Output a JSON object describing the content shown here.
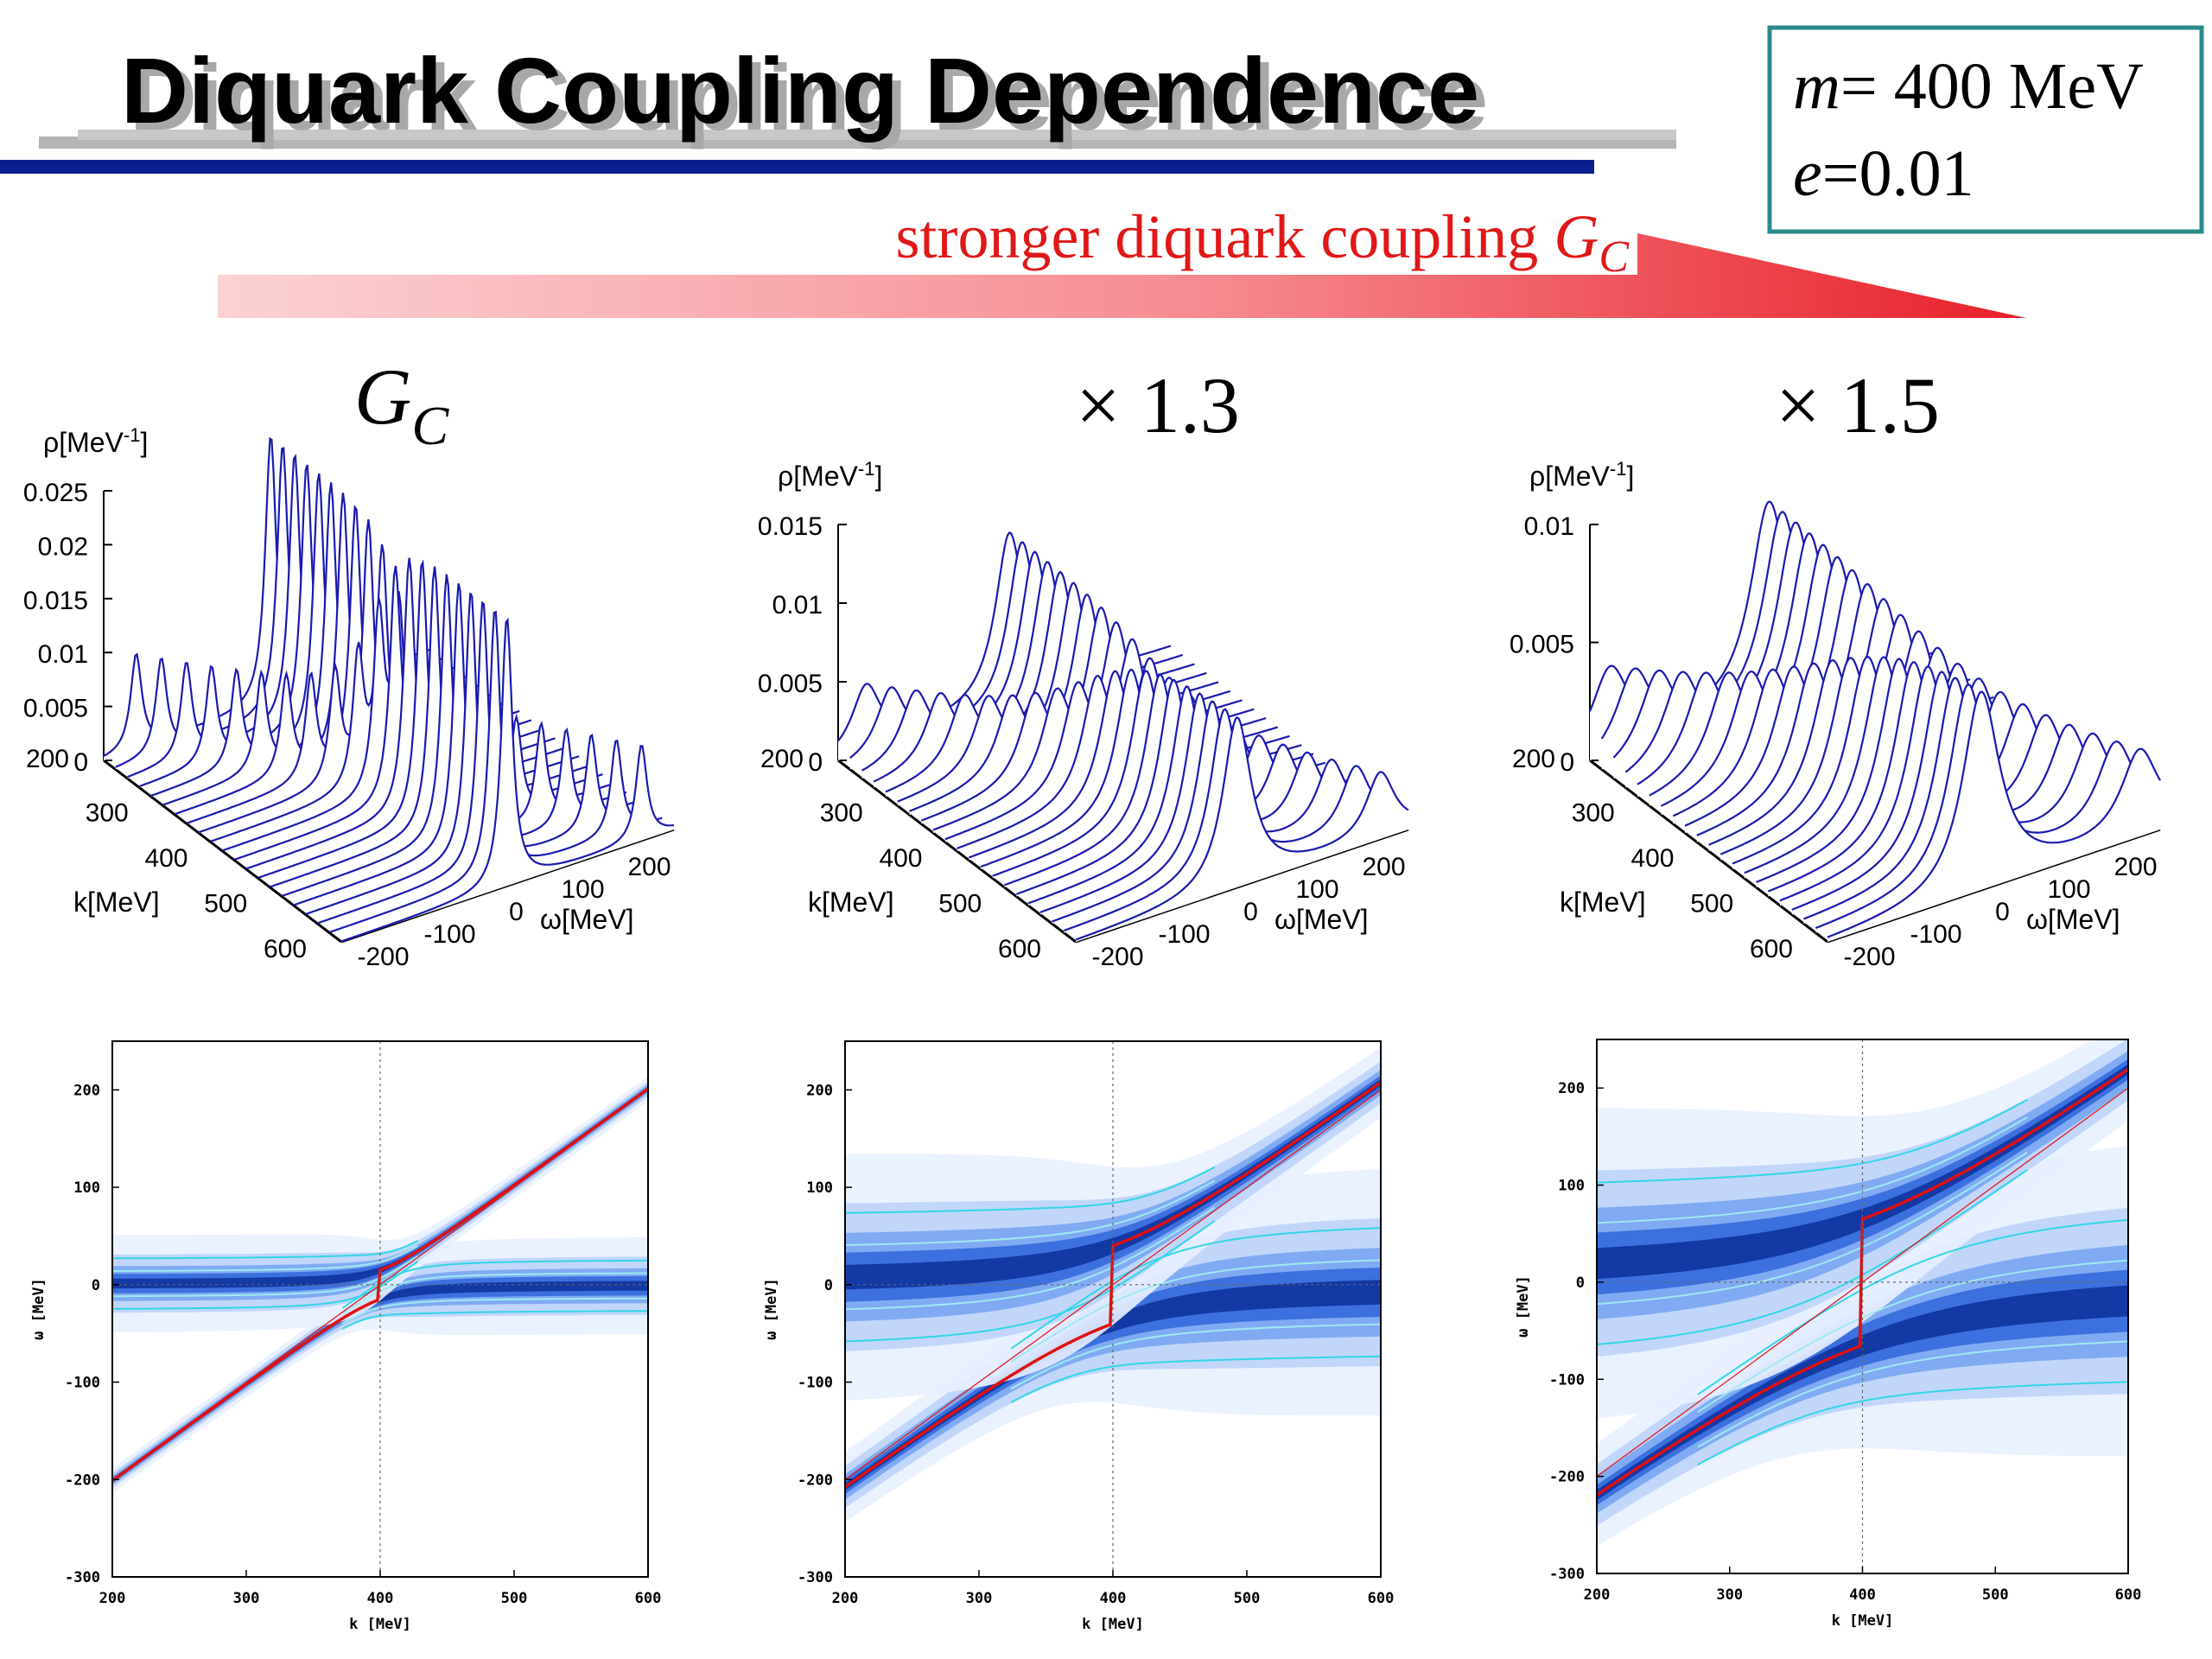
{
  "slide": {
    "title": "Diquark Coupling Dependence",
    "params": {
      "m_symbol": "m",
      "m_value": "= 400 MeV",
      "e_symbol": "e",
      "e_value": "=0.01"
    },
    "arrow_caption": "stronger diquark coupling ",
    "arrow_symbol": "G",
    "arrow_sub": "C",
    "colors": {
      "title_bar": "#0a1f8f",
      "shadow_bar": "#b5b5b5",
      "arrow": "#e8202a",
      "box": "#2a8a8a",
      "curve": "#1a1ab0",
      "contour": "#33d6e6",
      "peak_line": "#e01010"
    }
  },
  "chart_data": [
    {
      "type": "surface3d",
      "heading_symbol": "G",
      "heading_sub": "C",
      "zlabel": "ρ[MeV",
      "zlabel_exp": "-1",
      "zlabel_close": "]",
      "xlabel": "k[MeV]",
      "ylabel": "ω[MeV]",
      "k_ticks": [
        "200",
        "300",
        "400",
        "500",
        "600"
      ],
      "w_ticks": [
        "-200",
        "-100",
        "0",
        "100",
        "200"
      ],
      "z_ticks": [
        "0",
        "0.005",
        "0.01",
        "0.015",
        "0.02",
        "0.025"
      ],
      "zmax": 0.025,
      "k_range": [
        200,
        600
      ],
      "w_range": [
        -250,
        250
      ],
      "coupling_factor": 1.0,
      "gap": 30,
      "width": 10,
      "peak_height": 0.025
    },
    {
      "type": "surface3d",
      "heading": "× 1.3",
      "zlabel": "ρ[MeV",
      "zlabel_exp": "-1",
      "zlabel_close": "]",
      "xlabel": "k[MeV]",
      "ylabel": "ω[MeV]",
      "k_ticks": [
        "200",
        "300",
        "400",
        "500",
        "600"
      ],
      "w_ticks": [
        "-200",
        "-100",
        "0",
        "100",
        "200"
      ],
      "z_ticks": [
        "0",
        "0.005",
        "0.01",
        "0.015"
      ],
      "zmax": 0.015,
      "k_range": [
        200,
        600
      ],
      "w_range": [
        -250,
        250
      ],
      "coupling_factor": 1.3,
      "gap": 80,
      "width": 26,
      "peak_height": 0.011
    },
    {
      "type": "surface3d",
      "heading": "× 1.5",
      "zlabel": "ρ[MeV",
      "zlabel_exp": "-1",
      "zlabel_close": "]",
      "xlabel": "k[MeV]",
      "ylabel": "ω[MeV]",
      "k_ticks": [
        "200",
        "300",
        "400",
        "500",
        "600"
      ],
      "w_ticks": [
        "-200",
        "-100",
        "0",
        "100",
        "200"
      ],
      "z_ticks": [
        "0",
        "0.005",
        "0.01"
      ],
      "zmax": 0.01,
      "k_range": [
        200,
        600
      ],
      "w_range": [
        -250,
        250
      ],
      "coupling_factor": 1.5,
      "gap": 130,
      "width": 34,
      "peak_height": 0.0088
    },
    {
      "type": "heatmap",
      "xlabel": "k [MeV]",
      "ylabel": "ω [MeV]",
      "x_ticks": [
        "200",
        "300",
        "400",
        "500",
        "600"
      ],
      "y_ticks": [
        "-300",
        "-200",
        "-100",
        "0",
        "100",
        "200"
      ],
      "xlim": [
        200,
        600
      ],
      "ylim": [
        -300,
        250
      ],
      "gap": 30,
      "width": 10
    },
    {
      "type": "heatmap",
      "xlabel": "k [MeV]",
      "ylabel": "ω [MeV]",
      "x_ticks": [
        "200",
        "300",
        "400",
        "500",
        "600"
      ],
      "y_ticks": [
        "-300",
        "-200",
        "-100",
        "0",
        "100",
        "200"
      ],
      "xlim": [
        200,
        600
      ],
      "ylim": [
        -300,
        250
      ],
      "gap": 80,
      "width": 26
    },
    {
      "type": "heatmap",
      "xlabel": "k [MeV]",
      "ylabel": "ω [MeV]",
      "x_ticks": [
        "200",
        "300",
        "400",
        "500",
        "600"
      ],
      "y_ticks": [
        "-300",
        "-200",
        "-100",
        "0",
        "100",
        "200"
      ],
      "xlim": [
        200,
        600
      ],
      "ylim": [
        -300,
        250
      ],
      "gap": 130,
      "width": 34
    }
  ]
}
